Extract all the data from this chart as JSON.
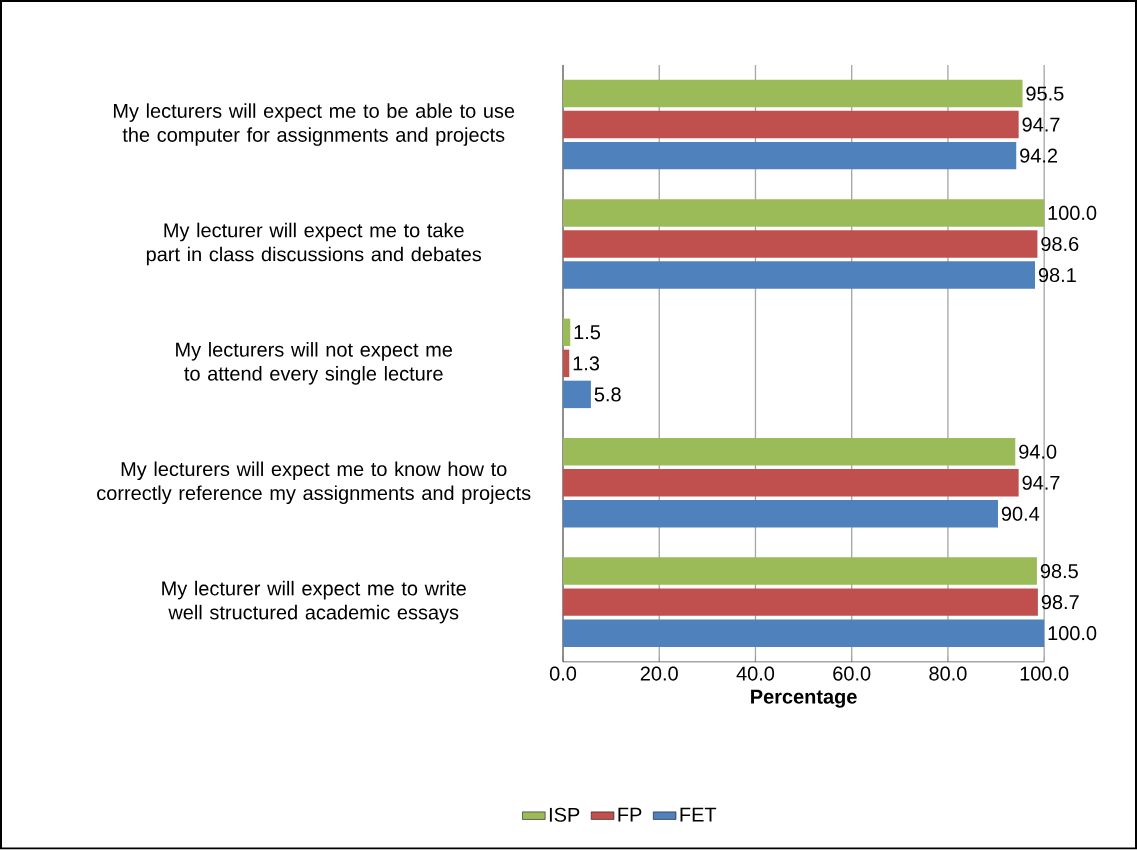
{
  "chart_data": {
    "type": "bar",
    "orientation": "horizontal",
    "xlabel": "Percentage",
    "categories": [
      "My lecturers will expect me to be able to use the computer for assignments and projects",
      "My lecturer will expect me to take part in class discussions and debates",
      "My lecturers will not expect me to attend every single lecture",
      "My lecturers will expect me to know how to correctly reference my assignments and projects",
      "My lecturer will expect me to write well structured academic essays"
    ],
    "series": [
      {
        "name": "ISP",
        "color": "#9bbb59",
        "values": [
          95.5,
          100.0,
          1.5,
          94.0,
          98.5
        ],
        "value_labels": [
          "95.5",
          "100.0",
          "1.5",
          "94.0",
          "98.5"
        ]
      },
      {
        "name": "FP",
        "color": "#c0504d",
        "values": [
          94.7,
          98.6,
          1.3,
          94.7,
          98.7
        ],
        "value_labels": [
          "94.7",
          "98.6",
          "1.3",
          "94.7",
          "98.7"
        ]
      },
      {
        "name": "FET",
        "color": "#4f81bd",
        "values": [
          94.2,
          98.1,
          5.8,
          90.4,
          100.0
        ],
        "value_labels": [
          "94.2",
          "98.1",
          "5.8",
          "90.4",
          "100.0"
        ]
      }
    ],
    "xlim": [
      0,
      100
    ],
    "xticks": [
      {
        "value": 0,
        "label": "0.0"
      },
      {
        "value": 20,
        "label": "20.0"
      },
      {
        "value": 40,
        "label": "40.0"
      },
      {
        "value": 60,
        "label": "60.0"
      },
      {
        "value": 80,
        "label": "80.0"
      },
      {
        "value": 100,
        "label": "100.0"
      }
    ],
    "grid": "x",
    "legend": "bottom"
  }
}
